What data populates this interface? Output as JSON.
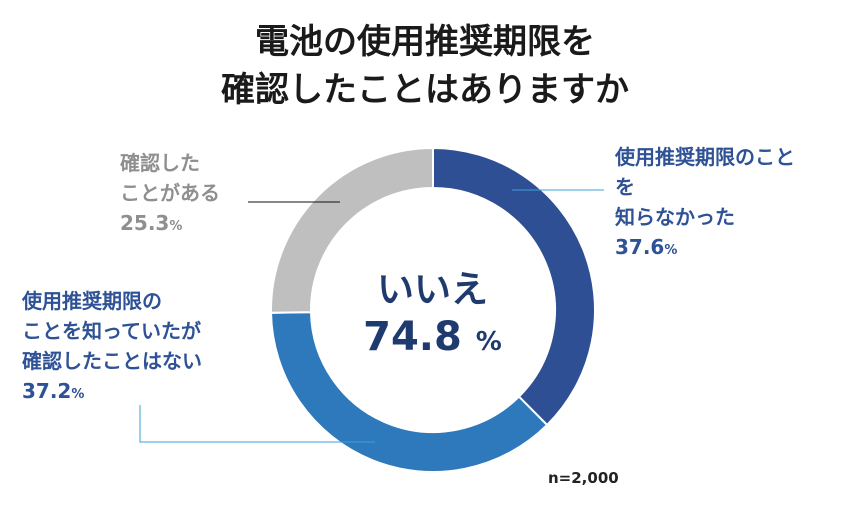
{
  "title": {
    "line1": "電池の使用推奨期限を",
    "line2": "確認したことはありますか"
  },
  "chart_data": {
    "type": "pie",
    "variant": "donut",
    "title": "電池の使用推奨期限を確認したことはありますか",
    "categories": [
      "使用推奨期限のことを知らなかった",
      "使用推奨期限のことを知っていたが確認したことはない",
      "確認したことがある"
    ],
    "values": [
      37.6,
      37.2,
      25.3
    ],
    "unit": "%",
    "colors": [
      "#2e4f93",
      "#2e79bb",
      "#bfbfbf"
    ],
    "center_label": "いいえ",
    "center_value": "74.8",
    "center_unit": "%",
    "n_label": "n=2,000"
  },
  "labels": {
    "gray": {
      "line1": "確認した",
      "line2": "ことがある",
      "value": "25.3",
      "unit": "%"
    },
    "blue1": {
      "line1": "使用推奨期限のこと",
      "line2": "を",
      "line3": "知らなかった",
      "value": "37.6",
      "unit": "%"
    },
    "blue2": {
      "line1": "使用推奨期限の",
      "line2": "ことを知っていたが",
      "line3": "確認したことはない",
      "value": "37.2",
      "unit": "%"
    }
  }
}
